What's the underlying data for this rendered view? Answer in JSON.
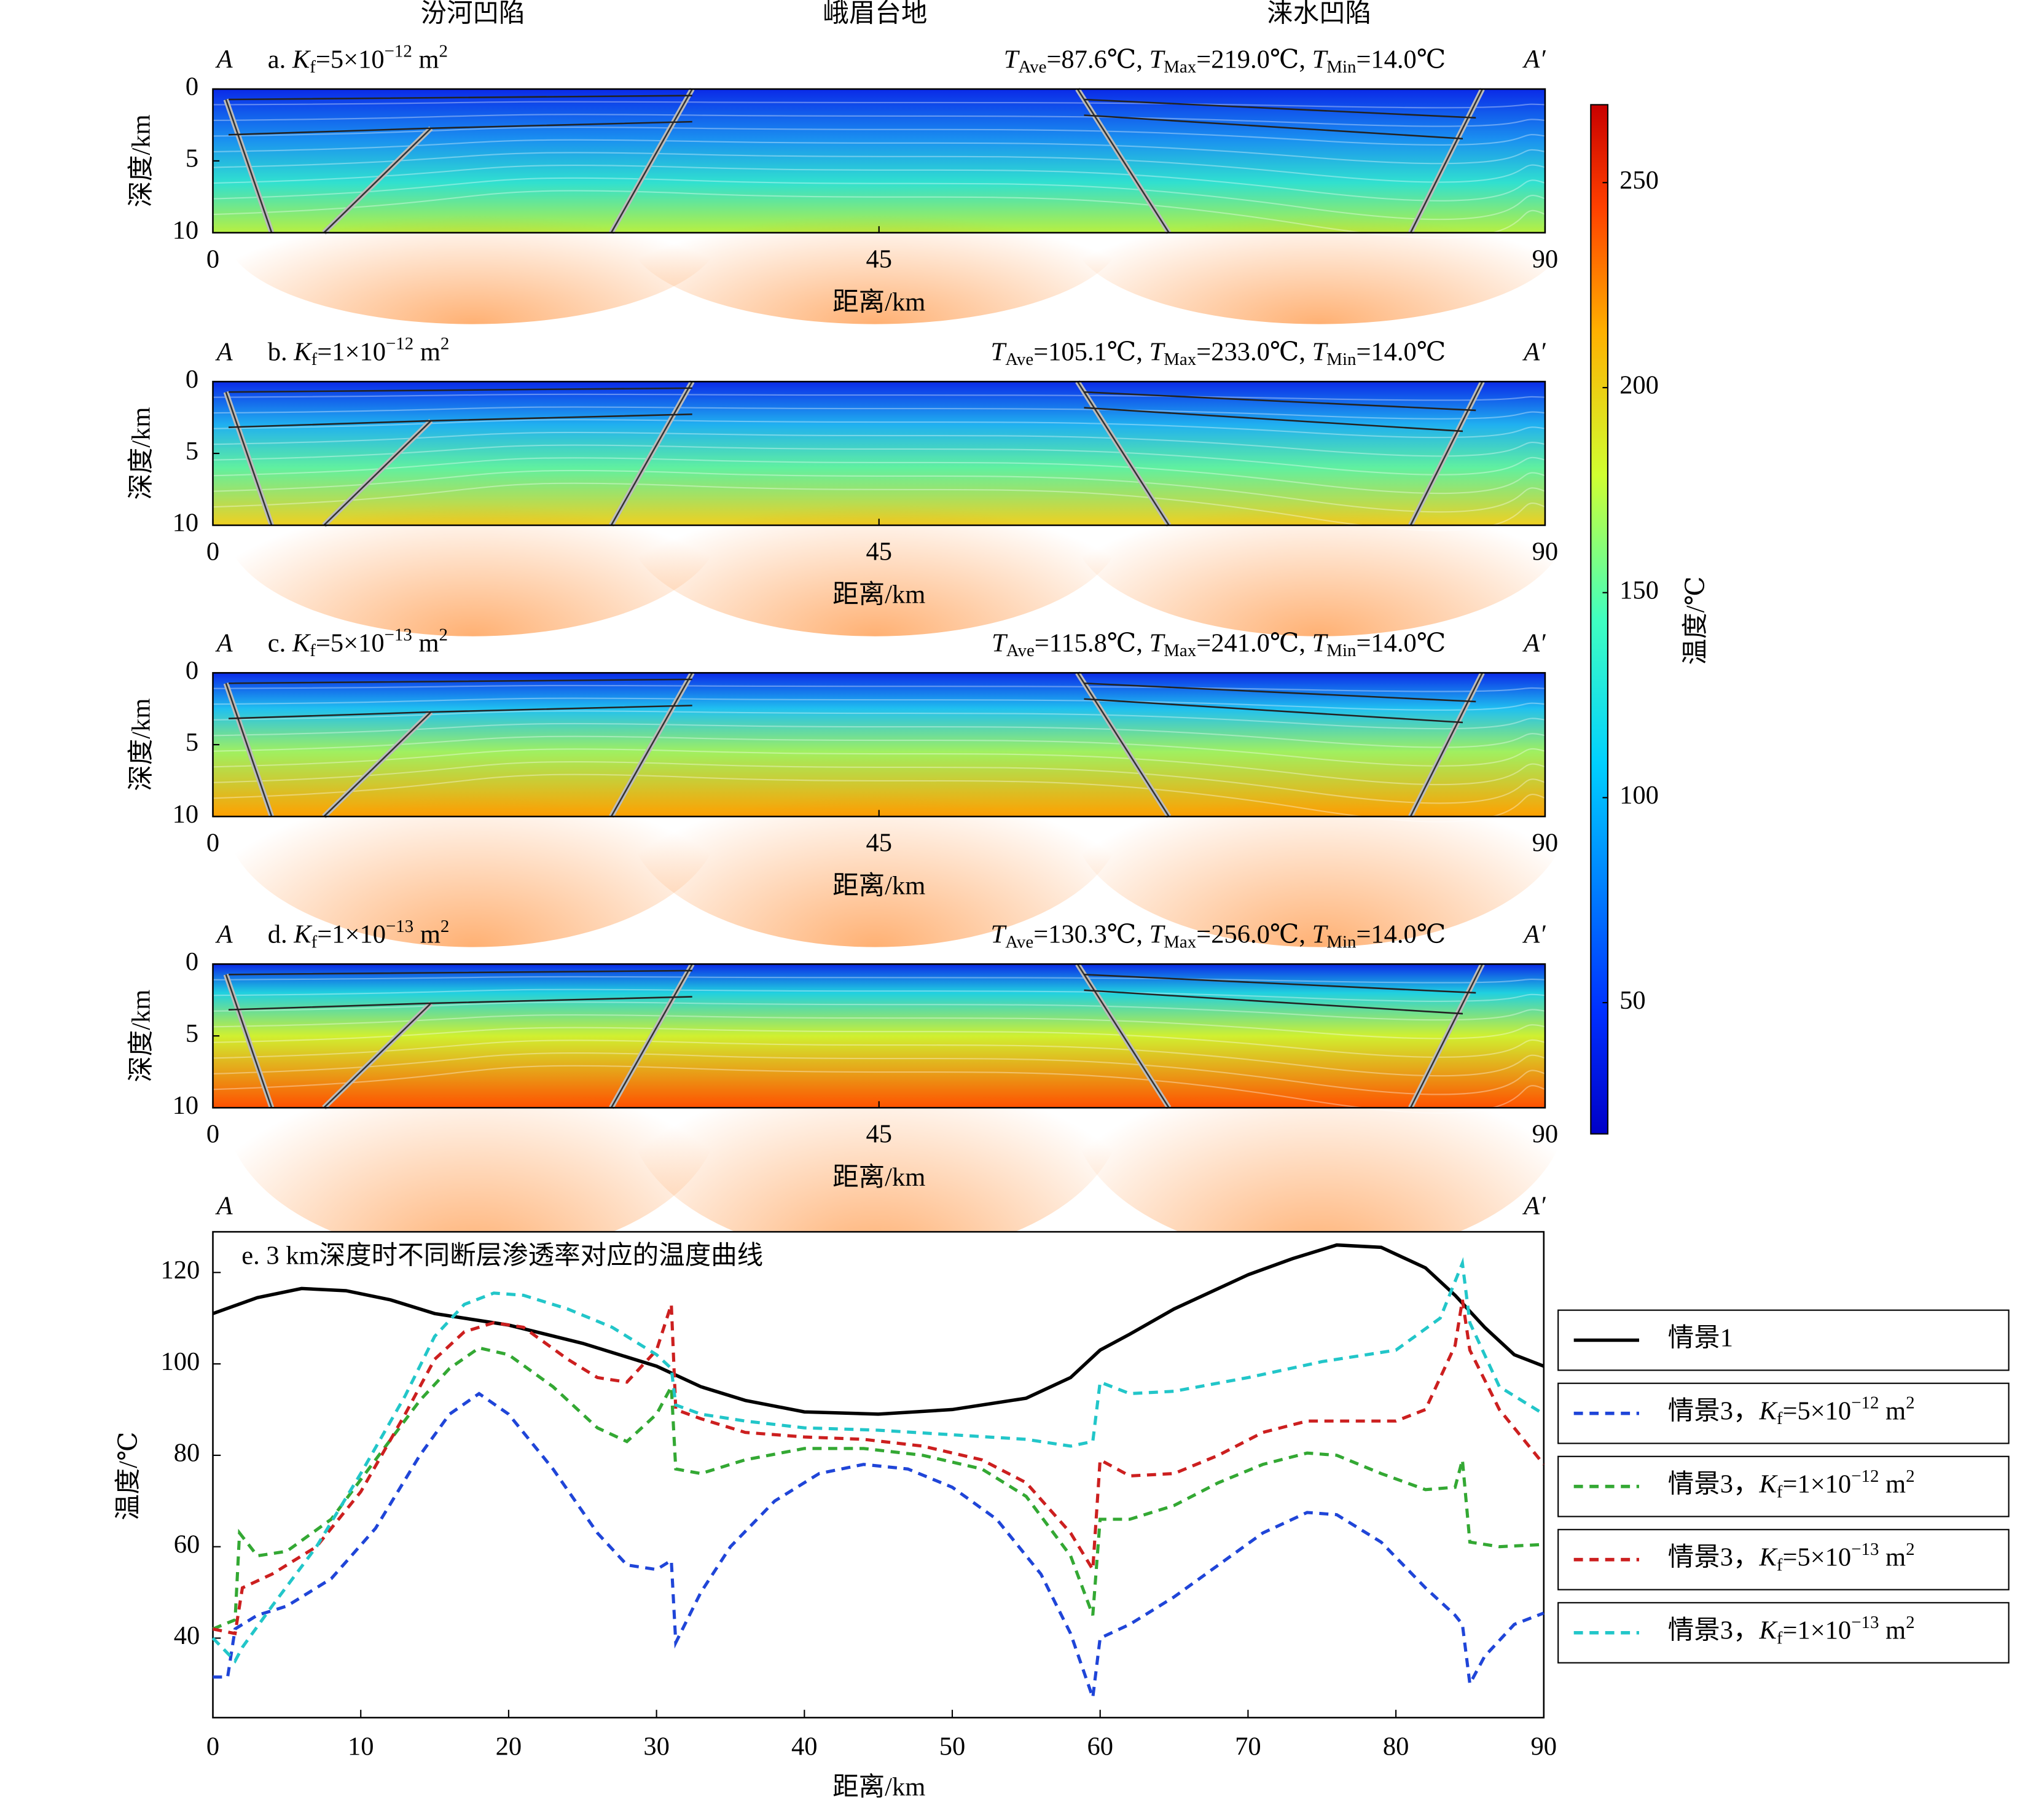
{
  "regions": [
    "汾河凹陷",
    "峨眉台地",
    "涞水凹陷"
  ],
  "chart_data": [
    {
      "type": "heatmap",
      "label": [
        {
          "t": "a. "
        },
        {
          "t": "K",
          "s": "i"
        },
        {
          "t": "f",
          "s": "sub"
        },
        {
          "t": "=5×10"
        },
        {
          "t": "−12",
          "s": "sup"
        },
        {
          "t": " m"
        },
        {
          "t": "2",
          "s": "sup"
        }
      ],
      "stats": [
        {
          "t": "T",
          "s": "i"
        },
        {
          "t": "Ave",
          "s": "sub"
        },
        {
          "t": "=87.6℃, "
        },
        {
          "t": "T",
          "s": "i"
        },
        {
          "t": "Max",
          "s": "sub"
        },
        {
          "t": "=219.0℃, "
        },
        {
          "t": "T",
          "s": "i"
        },
        {
          "t": "Min",
          "s": "sub"
        },
        {
          "t": "=14.0℃"
        }
      ],
      "start_label": "A",
      "end_label": "A′",
      "xlabel": "距离/km",
      "ylabel": "深度/km",
      "xlim": [
        0,
        90
      ],
      "ylim": [
        10,
        0
      ],
      "xticks": [
        0,
        45,
        90
      ],
      "yticks": [
        0,
        5,
        10
      ]
    },
    {
      "type": "heatmap",
      "label": [
        {
          "t": "b. "
        },
        {
          "t": "K",
          "s": "i"
        },
        {
          "t": "f",
          "s": "sub"
        },
        {
          "t": "=1×10"
        },
        {
          "t": "−12",
          "s": "sup"
        },
        {
          "t": " m"
        },
        {
          "t": "2",
          "s": "sup"
        }
      ],
      "stats": [
        {
          "t": "T",
          "s": "i"
        },
        {
          "t": "Ave",
          "s": "sub"
        },
        {
          "t": "=105.1℃, "
        },
        {
          "t": "T",
          "s": "i"
        },
        {
          "t": "Max",
          "s": "sub"
        },
        {
          "t": "=233.0℃, "
        },
        {
          "t": "T",
          "s": "i"
        },
        {
          "t": "Min",
          "s": "sub"
        },
        {
          "t": "=14.0℃"
        }
      ],
      "start_label": "A",
      "end_label": "A′",
      "xlabel": "距离/km",
      "ylabel": "深度/km",
      "xlim": [
        0,
        90
      ],
      "ylim": [
        10,
        0
      ],
      "xticks": [
        0,
        45,
        90
      ],
      "yticks": [
        0,
        5,
        10
      ]
    },
    {
      "type": "heatmap",
      "label": [
        {
          "t": "c. "
        },
        {
          "t": "K",
          "s": "i"
        },
        {
          "t": "f",
          "s": "sub"
        },
        {
          "t": "=5×10"
        },
        {
          "t": "−13",
          "s": "sup"
        },
        {
          "t": " m"
        },
        {
          "t": "2",
          "s": "sup"
        }
      ],
      "stats": [
        {
          "t": "T",
          "s": "i"
        },
        {
          "t": "Ave",
          "s": "sub"
        },
        {
          "t": "=115.8℃, "
        },
        {
          "t": "T",
          "s": "i"
        },
        {
          "t": "Max",
          "s": "sub"
        },
        {
          "t": "=241.0℃, "
        },
        {
          "t": "T",
          "s": "i"
        },
        {
          "t": "Min",
          "s": "sub"
        },
        {
          "t": "=14.0℃"
        }
      ],
      "start_label": "A",
      "end_label": "A′",
      "xlabel": "距离/km",
      "ylabel": "深度/km",
      "xlim": [
        0,
        90
      ],
      "ylim": [
        10,
        0
      ],
      "xticks": [
        0,
        45,
        90
      ],
      "yticks": [
        0,
        5,
        10
      ]
    },
    {
      "type": "heatmap",
      "label": [
        {
          "t": "d. "
        },
        {
          "t": "K",
          "s": "i"
        },
        {
          "t": "f",
          "s": "sub"
        },
        {
          "t": "=1×10"
        },
        {
          "t": "−13",
          "s": "sup"
        },
        {
          "t": " m"
        },
        {
          "t": "2",
          "s": "sup"
        }
      ],
      "stats": [
        {
          "t": "T",
          "s": "i"
        },
        {
          "t": "Ave",
          "s": "sub"
        },
        {
          "t": "=130.3℃, "
        },
        {
          "t": "T",
          "s": "i"
        },
        {
          "t": "Max",
          "s": "sub"
        },
        {
          "t": "=256.0℃, "
        },
        {
          "t": "T",
          "s": "i"
        },
        {
          "t": "Min",
          "s": "sub"
        },
        {
          "t": "=14.0℃"
        }
      ],
      "start_label": "A",
      "end_label": "A′",
      "xlabel": "距离/km",
      "ylabel": "深度/km",
      "xlim": [
        0,
        90
      ],
      "ylim": [
        10,
        0
      ],
      "xticks": [
        0,
        45,
        90
      ],
      "yticks": [
        0,
        5,
        10
      ]
    },
    {
      "type": "colorbar",
      "label": "温度/℃",
      "ylim": [
        18,
        269
      ],
      "yticks": [
        50,
        100,
        150,
        200,
        250
      ]
    },
    {
      "type": "line",
      "title": "e. 3 km深度时不同断层渗透率对应的温度曲线",
      "start_label": "A",
      "end_label": "A′",
      "xlabel": "距离/km",
      "ylabel": "温度/℃",
      "xlim": [
        0,
        90
      ],
      "ylim": [
        22.6,
        128.9
      ],
      "xticks": [
        0,
        10,
        20,
        30,
        40,
        50,
        60,
        70,
        80,
        90
      ],
      "yticks": [
        40,
        60,
        80,
        100,
        120
      ],
      "series": [
        {
          "name": [
            {
              "t": "情景1"
            }
          ],
          "color": "#000000",
          "linestyle": "solid",
          "x": [
            0,
            3,
            6,
            9,
            12,
            15,
            20,
            25,
            30,
            33,
            36,
            40,
            45,
            50,
            55,
            58,
            60,
            62,
            65,
            70,
            73,
            76,
            79,
            82,
            84,
            86,
            88,
            90
          ],
          "values": [
            111,
            114.5,
            116.5,
            116,
            114,
            111,
            108.5,
            104.5,
            99.5,
            95,
            92,
            89.5,
            89,
            90,
            92.5,
            97,
            103,
            106.5,
            112,
            119.5,
            123,
            126,
            125.5,
            121,
            115,
            108,
            102,
            99.5
          ]
        },
        {
          "name": [
            {
              "t": "情景3，"
            },
            {
              "t": "K",
              "s": "i"
            },
            {
              "t": "f",
              "s": "sub"
            },
            {
              "t": "=5×10"
            },
            {
              "t": "−12",
              "s": "sup"
            },
            {
              "t": " m"
            },
            {
              "t": "2",
              "s": "sup"
            }
          ],
          "color": "#1f45d8",
          "linestyle": "dashed",
          "x": [
            0,
            1,
            1.5,
            3,
            5,
            8,
            11,
            14,
            16,
            18,
            20,
            23,
            26,
            28,
            30,
            31,
            31.3,
            33,
            35,
            38,
            41,
            44,
            47,
            50,
            53,
            56,
            58,
            59.5,
            60,
            62,
            65,
            68,
            71,
            74,
            76,
            79,
            82,
            84,
            84.5,
            85,
            86,
            88,
            90
          ],
          "values": [
            31.5,
            31.5,
            42,
            45,
            47,
            53,
            64,
            80,
            89,
            93.5,
            89,
            77,
            63,
            56,
            55,
            57,
            39,
            50,
            60,
            70,
            76,
            78,
            77,
            73,
            66,
            54,
            41,
            27,
            40,
            43,
            49,
            56,
            63,
            67.5,
            67,
            61,
            51,
            45,
            43,
            30,
            36,
            43,
            45.5
          ]
        },
        {
          "name": [
            {
              "t": "情景3，"
            },
            {
              "t": "K",
              "s": "i"
            },
            {
              "t": "f",
              "s": "sub"
            },
            {
              "t": "=1×10"
            },
            {
              "t": "−12",
              "s": "sup"
            },
            {
              "t": " m"
            },
            {
              "t": "2",
              "s": "sup"
            }
          ],
          "color": "#33a833",
          "linestyle": "dashed",
          "x": [
            0,
            1.5,
            1.8,
            3,
            5,
            8,
            11,
            14,
            16,
            18,
            20,
            23,
            26,
            28,
            30,
            31,
            31.3,
            33,
            36,
            40,
            44,
            48,
            52,
            55,
            58,
            59.5,
            60,
            62,
            65,
            68,
            71,
            74,
            76,
            79,
            82,
            84,
            84.5,
            85,
            87,
            90
          ],
          "values": [
            42,
            44,
            63,
            58,
            59,
            66,
            79,
            92,
            99,
            103.5,
            102,
            95,
            86,
            83,
            89,
            95,
            77,
            76,
            79,
            81.5,
            81.5,
            80,
            77,
            71,
            58,
            45,
            66,
            66,
            69,
            74,
            78,
            80.5,
            80,
            76,
            72.5,
            73,
            79,
            61,
            60,
            60.5
          ]
        },
        {
          "name": [
            {
              "t": "情景3，"
            },
            {
              "t": "K",
              "s": "i"
            },
            {
              "t": "f",
              "s": "sub"
            },
            {
              "t": "=5×10"
            },
            {
              "t": "−13",
              "s": "sup"
            },
            {
              "t": " m"
            },
            {
              "t": "2",
              "s": "sup"
            }
          ],
          "color": "#cc1f1f",
          "linestyle": "dashed",
          "x": [
            0,
            1.5,
            2,
            4,
            7,
            10,
            13,
            15,
            17,
            19,
            21,
            24,
            26,
            28,
            30,
            31,
            31.3,
            33,
            36,
            40,
            44,
            48,
            52,
            55,
            58,
            59.5,
            60,
            62,
            65,
            68,
            71,
            74,
            77,
            80,
            82,
            84,
            84.5,
            85,
            87,
            90
          ],
          "values": [
            42,
            41,
            51,
            54,
            60,
            72,
            89,
            101,
            107,
            109,
            108,
            101,
            97,
            96,
            103,
            113,
            90,
            88,
            85,
            84,
            83.5,
            82,
            79,
            74,
            63,
            55,
            79,
            75.5,
            76,
            80,
            85,
            87.5,
            87.5,
            87.5,
            90,
            104,
            114,
            103,
            90,
            78
          ]
        },
        {
          "name": [
            {
              "t": "情景3，"
            },
            {
              "t": "K",
              "s": "i"
            },
            {
              "t": "f",
              "s": "sub"
            },
            {
              "t": "=1×10"
            },
            {
              "t": "−13",
              "s": "sup"
            },
            {
              "t": " m"
            },
            {
              "t": "2",
              "s": "sup"
            }
          ],
          "color": "#22c6c9",
          "linestyle": "dashed",
          "x": [
            0,
            1.5,
            2,
            4,
            7,
            10,
            13,
            15,
            17,
            19,
            21,
            24,
            27,
            30,
            31,
            31.3,
            33,
            36,
            40,
            45,
            50,
            55,
            58,
            59.5,
            60,
            62,
            65,
            70,
            75,
            80,
            83,
            84.5,
            85,
            87,
            90
          ],
          "values": [
            40,
            35,
            38,
            47,
            60,
            76,
            93,
            106,
            113,
            115.5,
            115,
            112,
            108,
            102,
            99,
            91,
            89,
            87.5,
            86,
            85.5,
            84.5,
            83.5,
            82,
            83,
            96,
            93.5,
            94,
            97,
            100.5,
            103,
            110,
            122,
            109,
            95,
            89
          ]
        }
      ]
    }
  ]
}
